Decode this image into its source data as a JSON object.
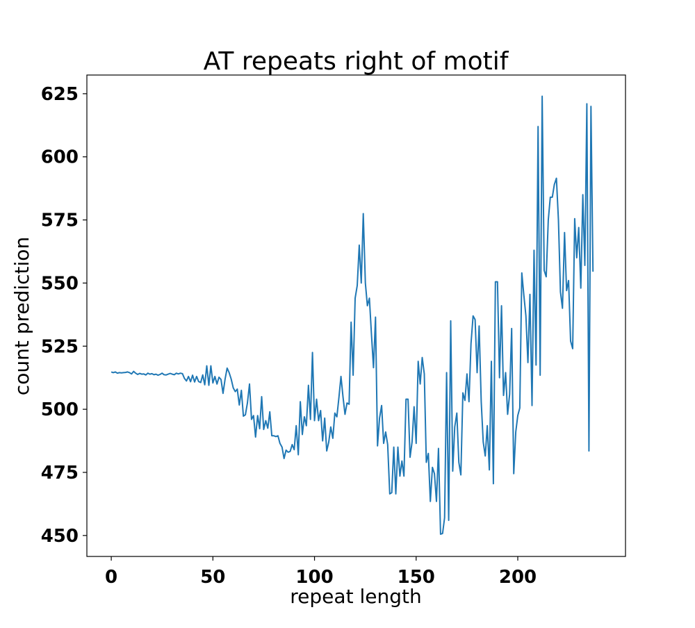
{
  "chart_data": {
    "type": "line",
    "title": "AT repeats right of motif",
    "xlabel": "repeat length",
    "ylabel": "count prediction",
    "xlim": [
      -12,
      253
    ],
    "ylim": [
      441.7,
      632.4
    ],
    "xticks": [
      0,
      50,
      100,
      150,
      200
    ],
    "yticks": [
      450,
      475,
      500,
      525,
      550,
      575,
      600,
      625
    ],
    "grid": false,
    "line_color": "#1f77b4",
    "series": [
      {
        "values": [
          514.8,
          514.5,
          514.8,
          514.3,
          514.5,
          514.4,
          514.5,
          514.6,
          514.8,
          514.5,
          514.0,
          515.0,
          514.3,
          513.8,
          514.2,
          513.9,
          514.0,
          513.6,
          514.3,
          513.9,
          514.1,
          513.7,
          513.9,
          513.5,
          513.8,
          514.3,
          513.7,
          513.6,
          513.9,
          514.2,
          513.9,
          513.7,
          514.3,
          514.0,
          514.3,
          514.1,
          512.2,
          511.2,
          513.0,
          510.9,
          513.5,
          510.8,
          513.0,
          511.0,
          510.6,
          513.6,
          509.7,
          517.2,
          509.5,
          517.2,
          510.4,
          513.0,
          510.0,
          512.7,
          511.8,
          506.3,
          512.0,
          516.3,
          514.5,
          512.0,
          508.5,
          507.0,
          508.0,
          501.7,
          507.5,
          497.3,
          497.8,
          502.5,
          510.0,
          496.0,
          497.5,
          489.0,
          497.5,
          492.3,
          505.0,
          492.0,
          495.5,
          492.5,
          499.0,
          489.5,
          489.5,
          489.2,
          489.5,
          486.5,
          485.0,
          480.5,
          483.8,
          483.0,
          483.3,
          486.0,
          484.0,
          493.5,
          482.0,
          503.0,
          490.0,
          497.0,
          493.5,
          509.5,
          496.0,
          522.5,
          495.5,
          504.0,
          495.5,
          499.5,
          487.5,
          496.5,
          483.5,
          487.0,
          493.0,
          488.5,
          498.5,
          497.0,
          504.5,
          513.0,
          505.0,
          498.0,
          502.5,
          502.0,
          534.5,
          513.5,
          544.0,
          549.0,
          565.0,
          550.0,
          577.5,
          550.0,
          541.0,
          544.0,
          530.0,
          516.5,
          536.5,
          485.5,
          496.5,
          501.5,
          486.5,
          491.0,
          486.0,
          466.5,
          467.0,
          485.0,
          466.5,
          485.0,
          473.5,
          479.5,
          473.5,
          504.0,
          504.0,
          481.0,
          487.0,
          501.0,
          486.5,
          519.0,
          510.0,
          520.5,
          514.0,
          479.0,
          482.5,
          463.5,
          477.0,
          474.5,
          463.5,
          484.5,
          450.5,
          450.8,
          457.0,
          514.5,
          456.0,
          535.0,
          475.5,
          493.0,
          498.5,
          479.0,
          474.0,
          506.5,
          503.5,
          514.0,
          503.0,
          526.0,
          537.0,
          535.5,
          514.5,
          533.0,
          503.0,
          487.0,
          481.5,
          493.5,
          476.0,
          519.0,
          470.5,
          550.5,
          550.5,
          512.5,
          541.0,
          505.5,
          514.5,
          498.0,
          506.0,
          532.0,
          474.5,
          491.0,
          497.5,
          500.5,
          554.0,
          545.0,
          537.0,
          518.5,
          545.5,
          501.5,
          563.0,
          517.5,
          612.0,
          513.5,
          624.0,
          555.0,
          552.5,
          575.0,
          584.0,
          584.0,
          589.0,
          591.5,
          575.0,
          546.5,
          540.0,
          570.0,
          547.0,
          551.0,
          527.0,
          524.0,
          575.5,
          560.0,
          572.0,
          548.0,
          585.0,
          557.0,
          621.0,
          483.5,
          620.0,
          554.5
        ]
      }
    ]
  }
}
